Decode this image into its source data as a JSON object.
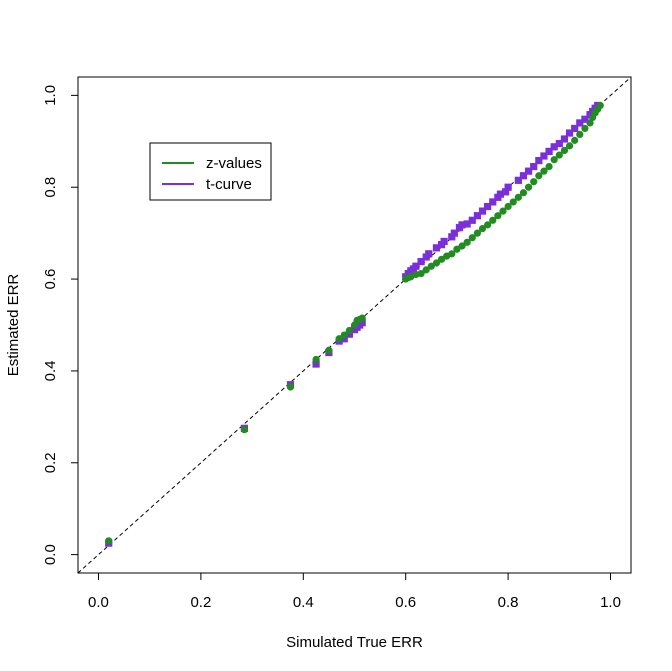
{
  "chart_data": {
    "type": "scatter",
    "title": "",
    "xlabel": "Simulated True ERR",
    "ylabel": "Estimated ERR",
    "xlim": [
      -0.04,
      1.04
    ],
    "ylim": [
      -0.04,
      1.04
    ],
    "xticks": [
      "0.0",
      "0.2",
      "0.4",
      "0.6",
      "0.8",
      "1.0"
    ],
    "yticks": [
      "0.0",
      "0.2",
      "0.4",
      "0.6",
      "0.8",
      "1.0"
    ],
    "grid": false,
    "reference_line": "y = x (dashed)",
    "legend_position": "upper-left",
    "series": [
      {
        "name": "t-curve",
        "color": "#7B2FD8",
        "marker": "square",
        "points": [
          [
            0.02,
            0.025
          ],
          [
            0.285,
            0.275
          ],
          [
            0.375,
            0.37
          ],
          [
            0.425,
            0.415
          ],
          [
            0.45,
            0.44
          ],
          [
            0.47,
            0.465
          ],
          [
            0.48,
            0.47
          ],
          [
            0.49,
            0.48
          ],
          [
            0.5,
            0.49
          ],
          [
            0.505,
            0.495
          ],
          [
            0.51,
            0.5
          ],
          [
            0.515,
            0.505
          ],
          [
            0.6,
            0.605
          ],
          [
            0.605,
            0.612
          ],
          [
            0.61,
            0.618
          ],
          [
            0.615,
            0.622
          ],
          [
            0.62,
            0.628
          ],
          [
            0.63,
            0.638
          ],
          [
            0.64,
            0.648
          ],
          [
            0.645,
            0.655
          ],
          [
            0.66,
            0.668
          ],
          [
            0.67,
            0.675
          ],
          [
            0.675,
            0.682
          ],
          [
            0.69,
            0.692
          ],
          [
            0.695,
            0.7
          ],
          [
            0.705,
            0.712
          ],
          [
            0.71,
            0.718
          ],
          [
            0.72,
            0.72
          ],
          [
            0.73,
            0.728
          ],
          [
            0.74,
            0.738
          ],
          [
            0.75,
            0.748
          ],
          [
            0.76,
            0.758
          ],
          [
            0.77,
            0.768
          ],
          [
            0.78,
            0.778
          ],
          [
            0.785,
            0.785
          ],
          [
            0.795,
            0.79
          ],
          [
            0.8,
            0.8
          ],
          [
            0.82,
            0.815
          ],
          [
            0.83,
            0.825
          ],
          [
            0.84,
            0.835
          ],
          [
            0.85,
            0.845
          ],
          [
            0.86,
            0.858
          ],
          [
            0.87,
            0.868
          ],
          [
            0.88,
            0.878
          ],
          [
            0.89,
            0.888
          ],
          [
            0.9,
            0.895
          ],
          [
            0.91,
            0.905
          ],
          [
            0.92,
            0.918
          ],
          [
            0.93,
            0.928
          ],
          [
            0.94,
            0.94
          ],
          [
            0.95,
            0.948
          ],
          [
            0.96,
            0.958
          ],
          [
            0.965,
            0.965
          ],
          [
            0.97,
            0.972
          ],
          [
            0.975,
            0.978
          ]
        ]
      },
      {
        "name": "z-values",
        "color": "#228B22",
        "marker": "circle",
        "points": [
          [
            0.02,
            0.03
          ],
          [
            0.285,
            0.272
          ],
          [
            0.375,
            0.365
          ],
          [
            0.425,
            0.425
          ],
          [
            0.45,
            0.445
          ],
          [
            0.47,
            0.47
          ],
          [
            0.48,
            0.478
          ],
          [
            0.49,
            0.488
          ],
          [
            0.5,
            0.5
          ],
          [
            0.505,
            0.51
          ],
          [
            0.51,
            0.512
          ],
          [
            0.515,
            0.515
          ],
          [
            0.6,
            0.6
          ],
          [
            0.605,
            0.603
          ],
          [
            0.61,
            0.605
          ],
          [
            0.62,
            0.61
          ],
          [
            0.63,
            0.612
          ],
          [
            0.64,
            0.62
          ],
          [
            0.65,
            0.628
          ],
          [
            0.66,
            0.635
          ],
          [
            0.67,
            0.643
          ],
          [
            0.68,
            0.65
          ],
          [
            0.69,
            0.655
          ],
          [
            0.7,
            0.665
          ],
          [
            0.71,
            0.672
          ],
          [
            0.72,
            0.68
          ],
          [
            0.73,
            0.69
          ],
          [
            0.74,
            0.7
          ],
          [
            0.75,
            0.71
          ],
          [
            0.76,
            0.718
          ],
          [
            0.77,
            0.728
          ],
          [
            0.78,
            0.738
          ],
          [
            0.79,
            0.748
          ],
          [
            0.8,
            0.758
          ],
          [
            0.81,
            0.768
          ],
          [
            0.82,
            0.778
          ],
          [
            0.83,
            0.788
          ],
          [
            0.84,
            0.8
          ],
          [
            0.85,
            0.812
          ],
          [
            0.86,
            0.825
          ],
          [
            0.87,
            0.835
          ],
          [
            0.88,
            0.845
          ],
          [
            0.89,
            0.86
          ],
          [
            0.9,
            0.87
          ],
          [
            0.91,
            0.88
          ],
          [
            0.92,
            0.89
          ],
          [
            0.93,
            0.902
          ],
          [
            0.94,
            0.915
          ],
          [
            0.95,
            0.928
          ],
          [
            0.96,
            0.94
          ],
          [
            0.965,
            0.952
          ],
          [
            0.97,
            0.962
          ],
          [
            0.975,
            0.97
          ],
          [
            0.98,
            0.978
          ]
        ]
      }
    ]
  }
}
